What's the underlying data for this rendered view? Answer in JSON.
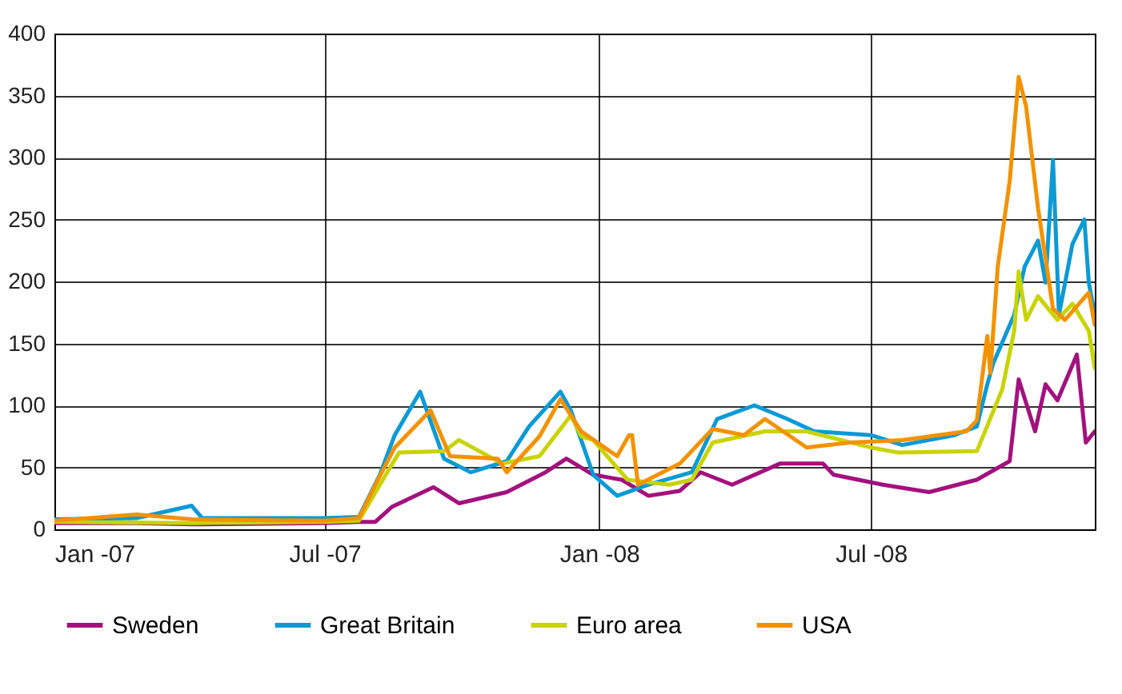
{
  "chart_data": {
    "type": "line",
    "xlim": [
      "2007-01-01",
      "2008-11-28"
    ],
    "xticks": [
      {
        "value": "2007-01-01",
        "label": "Jan -07"
      },
      {
        "value": "2007-07-01",
        "label": "Jul -07"
      },
      {
        "value": "2008-01-01",
        "label": "Jan -08"
      },
      {
        "value": "2008-07-01",
        "label": "Jul -08"
      }
    ],
    "ylim": [
      0,
      400
    ],
    "yticks": [
      0,
      50,
      100,
      150,
      200,
      250,
      300,
      350,
      400
    ],
    "grid": true,
    "legend": "bottom",
    "line_style": "solid",
    "marker": "none",
    "series": [
      {
        "name": "Sweden",
        "color": "#a3117e",
        "x": [
          "2007-01-01",
          "2007-02-25",
          "2007-04-03",
          "2007-07-01",
          "2007-07-24",
          "2007-08-04",
          "2007-08-15",
          "2007-09-12",
          "2007-09-29",
          "2007-10-31",
          "2007-11-26",
          "2007-12-10",
          "2007-12-28",
          "2008-01-16",
          "2008-02-03",
          "2008-02-24",
          "2008-03-09",
          "2008-03-30",
          "2008-05-01",
          "2008-05-30",
          "2008-06-06",
          "2008-07-09",
          "2008-08-09",
          "2008-09-10",
          "2008-10-02",
          "2008-10-08",
          "2008-10-19",
          "2008-10-26",
          "2008-11-03",
          "2008-11-16",
          "2008-11-22",
          "2008-11-28"
        ],
        "values": [
          5,
          5,
          4,
          5,
          6,
          6,
          18,
          34,
          21,
          30,
          46,
          57,
          44,
          40,
          27,
          31,
          46,
          36,
          53,
          53,
          44,
          36,
          30,
          40,
          55,
          121,
          79,
          117,
          104,
          141,
          70,
          79
        ]
      },
      {
        "name": "Great Britain",
        "color": "#0b9ad6",
        "x": [
          "2007-01-01",
          "2007-02-25",
          "2007-04-03",
          "2007-04-10",
          "2007-07-01",
          "2007-07-24",
          "2007-08-07",
          "2007-08-17",
          "2007-09-03",
          "2007-09-19",
          "2007-10-07",
          "2007-10-31",
          "2007-11-15",
          "2007-12-06",
          "2007-12-13",
          "2007-12-28",
          "2008-01-13",
          "2008-02-03",
          "2008-03-03",
          "2008-03-20",
          "2008-04-14",
          "2008-05-06",
          "2008-05-24",
          "2008-07-01",
          "2008-07-22",
          "2008-08-26",
          "2008-09-10",
          "2008-09-17",
          "2008-09-21",
          "2008-10-05",
          "2008-10-12",
          "2008-10-21",
          "2008-10-26",
          "2008-10-31",
          "2008-11-04",
          "2008-11-13",
          "2008-11-21",
          "2008-11-24",
          "2008-11-28"
        ],
        "values": [
          8,
          9,
          19,
          9,
          9,
          10,
          44,
          76,
          111,
          57,
          46,
          55,
          83,
          111,
          96,
          44,
          27,
          36,
          46,
          89,
          100,
          89,
          79,
          76,
          68,
          76,
          83,
          117,
          134,
          173,
          212,
          233,
          199,
          298,
          173,
          230,
          250,
          199,
          173
        ]
      },
      {
        "name": "Euro area",
        "color": "#c8d400",
        "x": [
          "2007-01-01",
          "2007-04-03",
          "2007-07-01",
          "2007-07-24",
          "2007-08-11",
          "2007-08-20",
          "2007-09-19",
          "2007-09-29",
          "2007-10-28",
          "2007-11-22",
          "2007-12-13",
          "2007-12-20",
          "2007-12-28",
          "2008-01-20",
          "2008-02-17",
          "2008-03-03",
          "2008-03-17",
          "2008-04-21",
          "2008-05-19",
          "2008-07-01",
          "2008-07-19",
          "2008-09-10",
          "2008-09-27",
          "2008-10-05",
          "2008-10-08",
          "2008-10-13",
          "2008-10-21",
          "2008-11-03",
          "2008-11-13",
          "2008-11-24",
          "2008-11-28"
        ],
        "values": [
          6,
          5,
          6,
          7,
          44,
          62,
          63,
          72,
          53,
          59,
          92,
          75,
          72,
          40,
          36,
          40,
          70,
          79,
          79,
          66,
          62,
          63,
          113,
          160,
          208,
          169,
          188,
          169,
          182,
          160,
          130
        ]
      },
      {
        "name": "USA",
        "color": "#f39200",
        "x": [
          "2007-01-01",
          "2007-02-25",
          "2007-04-03",
          "2007-07-01",
          "2007-07-24",
          "2007-08-07",
          "2007-08-17",
          "2007-09-10",
          "2007-09-23",
          "2007-10-25",
          "2007-10-31",
          "2007-11-22",
          "2007-12-06",
          "2007-12-20",
          "2008-01-13",
          "2008-01-21",
          "2008-01-23",
          "2008-01-27",
          "2008-02-24",
          "2008-03-17",
          "2008-04-07",
          "2008-04-21",
          "2008-05-19",
          "2008-06-17",
          "2008-07-22",
          "2008-09-03",
          "2008-09-10",
          "2008-09-17",
          "2008-09-19",
          "2008-09-24",
          "2008-10-02",
          "2008-10-08",
          "2008-10-13",
          "2008-10-21",
          "2008-10-31",
          "2008-11-08",
          "2008-11-24",
          "2008-11-28"
        ],
        "values": [
          7,
          12,
          8,
          7,
          9,
          43,
          66,
          96,
          59,
          57,
          46,
          75,
          105,
          79,
          59,
          76,
          76,
          36,
          53,
          81,
          76,
          89,
          66,
          70,
          72,
          79,
          88,
          156,
          126,
          212,
          281,
          365,
          341,
          259,
          178,
          169,
          191,
          165
        ]
      }
    ]
  }
}
